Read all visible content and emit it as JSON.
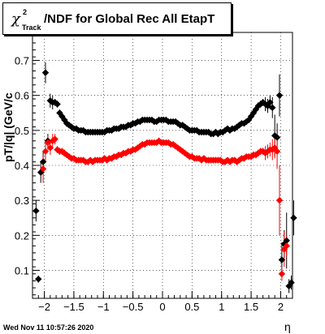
{
  "chart_data": {
    "type": "scatter",
    "title": {
      "chi_symbol": "χ",
      "superscript": "2",
      "subscript": "Track",
      "main": "/NDF for Global Rec All EtapT"
    },
    "xlabel": "η",
    "ylabel": "pT/|q| (GeV/c",
    "xlim": [
      -2.2,
      2.2
    ],
    "ylim": [
      0.02,
      0.78
    ],
    "grid": true,
    "xticks": [
      -2,
      -1.5,
      -1,
      -0.5,
      0,
      0.5,
      1,
      1.5,
      2
    ],
    "xtick_labels": [
      "−2",
      "−1.5",
      "−1",
      "−0.5",
      "0",
      "0.5",
      "1",
      "1.5",
      "2"
    ],
    "yticks": [
      0.1,
      0.2,
      0.3,
      0.4,
      0.5,
      0.6,
      0.7
    ],
    "ytick_labels": [
      "0.1",
      "0.2",
      "0.3",
      "0.4",
      "0.5",
      "0.6",
      "0.7"
    ],
    "series": [
      {
        "color": "#000000",
        "x": [
          -2.14,
          -2.1,
          -2.06,
          -2.02,
          -1.98,
          -1.94,
          -1.9,
          -1.86,
          -1.82,
          -1.78,
          -1.74,
          -1.7,
          -1.66,
          -1.62,
          -1.58,
          -1.54,
          -1.5,
          -1.46,
          -1.42,
          -1.38,
          -1.34,
          -1.3,
          -1.26,
          -1.22,
          -1.18,
          -1.14,
          -1.1,
          -1.06,
          -1.02,
          -0.98,
          -0.94,
          -0.9,
          -0.86,
          -0.82,
          -0.78,
          -0.74,
          -0.7,
          -0.66,
          -0.62,
          -0.58,
          -0.54,
          -0.5,
          -0.46,
          -0.42,
          -0.38,
          -0.34,
          -0.3,
          -0.26,
          -0.22,
          -0.18,
          -0.14,
          -0.1,
          -0.06,
          -0.02,
          0.02,
          0.06,
          0.1,
          0.14,
          0.18,
          0.22,
          0.26,
          0.3,
          0.34,
          0.38,
          0.42,
          0.46,
          0.5,
          0.54,
          0.58,
          0.62,
          0.66,
          0.7,
          0.74,
          0.78,
          0.82,
          0.86,
          0.9,
          0.94,
          0.98,
          1.02,
          1.06,
          1.1,
          1.14,
          1.18,
          1.22,
          1.26,
          1.3,
          1.34,
          1.38,
          1.42,
          1.46,
          1.5,
          1.54,
          1.58,
          1.62,
          1.66,
          1.7,
          1.74,
          1.78,
          1.82,
          1.86,
          1.9,
          1.94,
          1.98,
          2.02,
          2.06,
          2.1,
          2.14,
          2.18,
          2.22
        ],
        "y": [
          0.27,
          0.075,
          0.38,
          0.41,
          0.665,
          0.47,
          0.585,
          0.58,
          0.58,
          0.575,
          0.55,
          0.54,
          0.53,
          0.52,
          0.515,
          0.51,
          0.505,
          0.505,
          0.5,
          0.5,
          0.5,
          0.495,
          0.495,
          0.495,
          0.495,
          0.495,
          0.495,
          0.495,
          0.495,
          0.495,
          0.5,
          0.5,
          0.5,
          0.505,
          0.505,
          0.505,
          0.51,
          0.51,
          0.51,
          0.515,
          0.515,
          0.52,
          0.52,
          0.525,
          0.525,
          0.53,
          0.53,
          0.53,
          0.53,
          0.53,
          0.525,
          0.525,
          0.53,
          0.53,
          0.53,
          0.53,
          0.525,
          0.525,
          0.525,
          0.525,
          0.52,
          0.515,
          0.515,
          0.51,
          0.505,
          0.5,
          0.5,
          0.5,
          0.5,
          0.495,
          0.495,
          0.495,
          0.495,
          0.495,
          0.49,
          0.49,
          0.495,
          0.49,
          0.495,
          0.495,
          0.5,
          0.505,
          0.5,
          0.505,
          0.505,
          0.51,
          0.515,
          0.52,
          0.52,
          0.525,
          0.53,
          0.54,
          0.55,
          0.56,
          0.57,
          0.575,
          0.58,
          0.575,
          0.57,
          0.58,
          0.565,
          0.485,
          0.48,
          0.6,
          0.13,
          0.175,
          0.185,
          0.055,
          0.065,
          0.25
        ],
        "yerr": [
          0.03,
          0.01,
          0.03,
          0.03,
          0.03,
          0.02,
          0.02,
          0.02,
          0.01,
          0.01,
          0.01,
          0.01,
          0.01,
          0.01,
          0.005,
          0.005,
          0.005,
          0.005,
          0.005,
          0.005,
          0.005,
          0.005,
          0.005,
          0.005,
          0.005,
          0.005,
          0.005,
          0.005,
          0.005,
          0.005,
          0.005,
          0.005,
          0.005,
          0.005,
          0.005,
          0.005,
          0.005,
          0.005,
          0.005,
          0.005,
          0.005,
          0.005,
          0.005,
          0.005,
          0.005,
          0.005,
          0.005,
          0.005,
          0.005,
          0.005,
          0.005,
          0.005,
          0.005,
          0.005,
          0.005,
          0.005,
          0.005,
          0.005,
          0.005,
          0.005,
          0.005,
          0.005,
          0.005,
          0.005,
          0.005,
          0.005,
          0.005,
          0.005,
          0.005,
          0.005,
          0.005,
          0.005,
          0.005,
          0.005,
          0.005,
          0.005,
          0.005,
          0.005,
          0.005,
          0.005,
          0.005,
          0.005,
          0.005,
          0.005,
          0.005,
          0.005,
          0.005,
          0.005,
          0.005,
          0.005,
          0.005,
          0.01,
          0.01,
          0.01,
          0.01,
          0.01,
          0.01,
          0.02,
          0.02,
          0.02,
          0.03,
          0.06,
          0.04,
          0.06,
          0.05,
          0.04,
          0.08,
          0.02,
          0.02,
          0.05
        ]
      },
      {
        "color": "#ff0000",
        "x": [
          -2.02,
          -1.98,
          -1.94,
          -1.9,
          -1.86,
          -1.82,
          -1.78,
          -1.74,
          -1.7,
          -1.66,
          -1.62,
          -1.58,
          -1.54,
          -1.5,
          -1.46,
          -1.42,
          -1.38,
          -1.34,
          -1.3,
          -1.26,
          -1.22,
          -1.18,
          -1.14,
          -1.1,
          -1.06,
          -1.02,
          -0.98,
          -0.94,
          -0.9,
          -0.86,
          -0.82,
          -0.78,
          -0.74,
          -0.7,
          -0.66,
          -0.62,
          -0.58,
          -0.54,
          -0.5,
          -0.46,
          -0.42,
          -0.38,
          -0.34,
          -0.3,
          -0.26,
          -0.22,
          -0.18,
          -0.14,
          -0.1,
          -0.06,
          -0.02,
          0.02,
          0.06,
          0.1,
          0.14,
          0.18,
          0.22,
          0.26,
          0.3,
          0.34,
          0.38,
          0.42,
          0.46,
          0.5,
          0.54,
          0.58,
          0.62,
          0.66,
          0.7,
          0.74,
          0.78,
          0.82,
          0.86,
          0.9,
          0.94,
          0.98,
          1.02,
          1.06,
          1.1,
          1.14,
          1.18,
          1.22,
          1.26,
          1.3,
          1.34,
          1.38,
          1.42,
          1.46,
          1.5,
          1.54,
          1.58,
          1.62,
          1.66,
          1.7,
          1.74,
          1.78,
          1.82,
          1.86,
          1.9,
          1.94,
          1.98,
          2.02,
          2.06,
          2.1
        ],
        "y": [
          0.39,
          0.44,
          0.465,
          0.45,
          0.47,
          0.475,
          0.445,
          0.44,
          0.44,
          0.435,
          0.43,
          0.425,
          0.42,
          0.42,
          0.415,
          0.415,
          0.415,
          0.415,
          0.41,
          0.41,
          0.415,
          0.41,
          0.415,
          0.415,
          0.415,
          0.415,
          0.42,
          0.415,
          0.42,
          0.42,
          0.425,
          0.425,
          0.43,
          0.43,
          0.435,
          0.435,
          0.44,
          0.44,
          0.445,
          0.445,
          0.45,
          0.455,
          0.46,
          0.46,
          0.465,
          0.465,
          0.465,
          0.465,
          0.465,
          0.47,
          0.465,
          0.465,
          0.465,
          0.465,
          0.46,
          0.46,
          0.455,
          0.45,
          0.445,
          0.44,
          0.435,
          0.43,
          0.425,
          0.425,
          0.42,
          0.42,
          0.42,
          0.415,
          0.42,
          0.415,
          0.415,
          0.415,
          0.415,
          0.415,
          0.415,
          0.415,
          0.41,
          0.41,
          0.415,
          0.41,
          0.415,
          0.415,
          0.41,
          0.415,
          0.42,
          0.42,
          0.425,
          0.425,
          0.425,
          0.43,
          0.43,
          0.435,
          0.44,
          0.44,
          0.435,
          0.44,
          0.445,
          0.445,
          0.45,
          0.44,
          0.3,
          0.09,
          0.16,
          0.17
        ],
        "yerr": [
          0.04,
          0.03,
          0.02,
          0.02,
          0.02,
          0.015,
          0.01,
          0.01,
          0.01,
          0.01,
          0.005,
          0.005,
          0.005,
          0.005,
          0.005,
          0.005,
          0.005,
          0.005,
          0.005,
          0.005,
          0.005,
          0.005,
          0.005,
          0.005,
          0.005,
          0.005,
          0.005,
          0.005,
          0.005,
          0.005,
          0.005,
          0.005,
          0.005,
          0.005,
          0.005,
          0.005,
          0.005,
          0.005,
          0.005,
          0.005,
          0.005,
          0.005,
          0.005,
          0.005,
          0.005,
          0.005,
          0.005,
          0.005,
          0.005,
          0.005,
          0.005,
          0.005,
          0.005,
          0.005,
          0.005,
          0.005,
          0.005,
          0.005,
          0.005,
          0.005,
          0.005,
          0.005,
          0.005,
          0.005,
          0.005,
          0.005,
          0.005,
          0.005,
          0.005,
          0.005,
          0.005,
          0.005,
          0.005,
          0.005,
          0.005,
          0.005,
          0.005,
          0.005,
          0.005,
          0.005,
          0.005,
          0.005,
          0.005,
          0.005,
          0.005,
          0.005,
          0.005,
          0.005,
          0.01,
          0.01,
          0.01,
          0.01,
          0.01,
          0.01,
          0.02,
          0.02,
          0.02,
          0.03,
          0.03,
          0.05,
          0.1,
          0.02,
          0.05,
          0.03
        ]
      }
    ]
  },
  "footer": {
    "datestamp": "Wed Nov 11 10:57:26 2020"
  }
}
